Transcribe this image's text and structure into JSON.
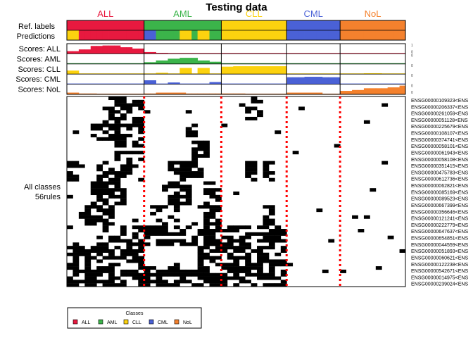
{
  "colors": {
    "ALL": "#E8193F",
    "AML": "#3BB44A",
    "CLL": "#FCD20F",
    "CML": "#4A61D6",
    "NoL": "#F4812D",
    "divider": "#FF0000"
  },
  "chart_data": {
    "type": "heatmap",
    "title": "Testing data",
    "classes": [
      "ALL",
      "AML",
      "CLL",
      "CML",
      "NoL"
    ],
    "class_sample_counts": [
      13,
      13,
      11,
      9,
      11
    ],
    "ref_labels_row": "Ref. labels",
    "predictions_row": "Predictions",
    "predictions": [
      "CLL",
      "CLL",
      "ALL",
      "ALL",
      "ALL",
      "ALL",
      "ALL",
      "ALL",
      "ALL",
      "ALL",
      "ALL",
      "ALL",
      "ALL",
      "CML",
      "CML",
      "AML",
      "AML",
      "AML",
      "AML",
      "CLL",
      "CLL",
      "AML",
      "CLL",
      "CLL",
      "AML",
      "AML",
      "CLL",
      "CLL",
      "CLL",
      "CLL",
      "CLL",
      "CLL",
      "CLL",
      "CLL",
      "CLL",
      "CLL",
      "CLL",
      "CML",
      "CML",
      "CML",
      "CML",
      "CML",
      "CML",
      "CML",
      "CML",
      "CML",
      "NoL",
      "NoL",
      "NoL",
      "NoL",
      "NoL",
      "NoL",
      "NoL",
      "NoL",
      "NoL",
      "NoL",
      "NoL"
    ],
    "score_rows": [
      {
        "label": "Scores: ALL",
        "class": "ALL",
        "max_label": "1",
        "min_label": "0",
        "values": [
          0.3,
          0.3,
          0.5,
          0.5,
          0.9,
          0.9,
          0.95,
          0.95,
          0.95,
          0.75,
          0.75,
          0.6,
          0.6,
          0.2,
          0.2,
          0.1,
          0.1,
          0,
          0,
          0,
          0,
          0,
          0,
          0,
          0,
          0,
          0.05,
          0.05,
          0,
          0,
          0,
          0,
          0,
          0,
          0,
          0,
          0,
          0,
          0,
          0,
          0,
          0,
          0,
          0,
          0,
          0,
          0,
          0,
          0,
          0,
          0,
          0,
          0,
          0,
          0,
          0,
          0
        ]
      },
      {
        "label": "Scores: AML",
        "class": "AML",
        "max_label": "0",
        "min_label": "",
        "values": [
          0,
          0,
          0,
          0,
          0,
          0,
          0,
          0,
          0,
          0,
          0,
          0,
          0,
          0.2,
          0.2,
          0.4,
          0.4,
          0.6,
          0.6,
          0.7,
          0.7,
          0.7,
          0.4,
          0.4,
          0.25,
          0.25,
          0,
          0,
          0,
          0,
          0,
          0,
          0,
          0,
          0,
          0,
          0,
          0,
          0,
          0,
          0,
          0,
          0,
          0,
          0,
          0,
          0,
          0,
          0,
          0,
          0,
          0,
          0,
          0,
          0,
          0,
          0
        ]
      },
      {
        "label": "Scores: CLL",
        "class": "CLL",
        "max_label": "0",
        "min_label": "",
        "values": [
          0.4,
          0.4,
          0,
          0,
          0,
          0,
          0,
          0,
          0,
          0,
          0,
          0,
          0,
          0,
          0,
          0.15,
          0.15,
          0,
          0,
          0.7,
          0.7,
          0,
          0.7,
          0.7,
          0,
          0,
          0.85,
          0.85,
          0.9,
          0.9,
          0.9,
          0.9,
          0.9,
          0.9,
          0.9,
          0.9,
          0.9,
          0,
          0,
          0,
          0,
          0,
          0,
          0,
          0,
          0,
          0,
          0,
          0,
          0,
          0.1,
          0.1,
          0.1,
          0,
          0,
          0,
          0
        ]
      },
      {
        "label": "Scores: CML",
        "class": "CML",
        "max_label": "0",
        "min_label": "",
        "values": [
          0,
          0,
          0,
          0,
          0,
          0,
          0,
          0,
          0,
          0,
          0,
          0,
          0,
          0.45,
          0.45,
          0,
          0,
          0.2,
          0.2,
          0,
          0,
          0,
          0,
          0,
          0.25,
          0.25,
          0,
          0,
          0,
          0,
          0,
          0,
          0,
          0,
          0,
          0,
          0,
          0.8,
          0.8,
          0.8,
          0.85,
          0.85,
          0.85,
          0.8,
          0.8,
          0.8,
          0,
          0,
          0,
          0,
          0,
          0,
          0,
          0,
          0,
          0,
          0
        ]
      },
      {
        "label": "Scores: NoL",
        "class": "NoL",
        "max_label": "0",
        "min_label": "0",
        "values": [
          0.2,
          0.2,
          0.1,
          0.1,
          0.1,
          0,
          0,
          0,
          0,
          0,
          0,
          0,
          0,
          0.1,
          0.1,
          0.2,
          0.2,
          0.2,
          0.2,
          0.2,
          0.1,
          0.1,
          0.1,
          0.1,
          0.1,
          0.1,
          0.1,
          0.1,
          0.1,
          0.1,
          0,
          0,
          0,
          0,
          0,
          0,
          0,
          0.2,
          0.2,
          0.2,
          0.2,
          0.2,
          0.2,
          0,
          0,
          0,
          0.4,
          0.4,
          0.5,
          0.5,
          0.7,
          0.7,
          0.7,
          0.7,
          0.8,
          0.8,
          1.0
        ]
      }
    ],
    "rules_label_line1": "All classes",
    "rules_label_line2": "56rules",
    "gene_labels": [
      "ENSG00000109323<ENS",
      "ENSG00000206337<ENS",
      "ENSG00000261059<ENS",
      "ENSG00000051128<ENS",
      "ENSG00000225679<ENS",
      "ENSG00000108107<ENS",
      "ENSG00000374741<ENS",
      "ENSG00000058101<ENS",
      "ENSG00000061943<ENS",
      "ENSG00000058108<ENS",
      "ENSG00000351415<ENS",
      "ENSG00000475783<ENS",
      "ENSG00000612736<ENS",
      "ENSG00000062821<ENS",
      "ENSG00000085169<ENS",
      "ENSG00000089523<ENS",
      "ENSG00000667399<ENS",
      "ENSG00000356646<ENS",
      "ENSG00000121241<ENS",
      "ENSG00000222779<ENS",
      "ENSG00000647637<ENS",
      "ENSG00000654851<ENS",
      "ENSG00000044559<ENS",
      "ENSG00000051893<ENS",
      "ENSG00000060621<ENS",
      "ENSG00000122238<ENS",
      "ENSG00000542671<ENS",
      "ENSG00000014975<ENS",
      "ENSG00000239024<ENS"
    ],
    "rule_cells": [
      [
        0,
        7,
        0
      ],
      [
        0,
        8,
        0
      ],
      [
        0,
        9,
        0
      ],
      [
        0,
        10,
        0
      ],
      [
        0,
        11,
        0
      ],
      [
        0,
        12,
        0
      ],
      [
        0,
        30,
        0
      ],
      [
        0,
        31,
        0
      ],
      [
        0,
        32,
        0
      ],
      [
        1,
        4,
        0
      ],
      [
        1,
        5,
        0
      ],
      [
        1,
        6,
        0
      ],
      [
        1,
        7,
        0
      ],
      [
        1,
        8,
        0
      ],
      [
        1,
        9,
        0
      ],
      [
        1,
        10,
        0
      ],
      [
        1,
        11,
        0
      ],
      [
        1,
        12,
        0
      ],
      [
        1,
        20,
        0
      ],
      [
        1,
        21,
        0
      ],
      [
        2,
        8,
        0
      ],
      [
        2,
        9,
        0
      ],
      [
        2,
        10,
        0
      ],
      [
        2,
        11,
        0
      ],
      [
        2,
        12,
        0
      ],
      [
        2,
        21,
        0
      ],
      [
        2,
        22,
        0
      ],
      [
        2,
        23,
        0
      ],
      [
        3,
        0,
        0
      ],
      [
        3,
        1,
        0
      ],
      [
        3,
        5,
        0
      ],
      [
        3,
        6,
        0
      ],
      [
        3,
        7,
        0
      ],
      [
        3,
        8,
        0
      ],
      [
        3,
        9,
        0
      ],
      [
        3,
        10,
        0
      ],
      [
        3,
        17,
        0
      ],
      [
        3,
        18,
        0
      ],
      [
        3,
        19,
        0
      ],
      [
        3,
        20,
        0
      ],
      [
        3,
        21,
        0
      ],
      [
        3,
        22,
        0
      ],
      [
        3,
        30,
        0
      ],
      [
        3,
        31,
        0
      ],
      [
        3,
        33,
        0
      ],
      [
        3,
        34,
        0
      ],
      [
        4,
        4,
        0
      ],
      [
        4,
        5,
        0
      ],
      [
        4,
        6,
        0
      ],
      [
        4,
        7,
        0
      ],
      [
        4,
        8,
        0
      ],
      [
        4,
        9,
        0
      ],
      [
        4,
        16,
        0
      ],
      [
        4,
        17,
        0
      ],
      [
        4,
        18,
        0
      ],
      [
        4,
        19,
        0
      ],
      [
        4,
        20,
        0
      ],
      [
        4,
        23,
        0
      ],
      [
        4,
        24,
        0
      ],
      [
        4,
        25,
        0
      ],
      [
        5,
        2,
        0
      ],
      [
        5,
        3,
        0
      ],
      [
        5,
        4,
        0
      ],
      [
        5,
        5,
        0
      ],
      [
        5,
        6,
        0
      ],
      [
        5,
        7,
        0
      ],
      [
        5,
        14,
        0
      ],
      [
        5,
        15,
        0
      ],
      [
        5,
        16,
        0
      ],
      [
        5,
        17,
        0
      ],
      [
        5,
        18,
        0
      ],
      [
        5,
        23,
        0
      ],
      [
        5,
        24,
        0
      ],
      [
        5,
        25,
        0
      ],
      [
        5,
        33,
        0
      ],
      [
        5,
        34,
        0
      ],
      [
        6,
        5,
        0
      ],
      [
        6,
        6,
        0
      ],
      [
        6,
        7,
        0
      ],
      [
        6,
        8,
        0
      ],
      [
        6,
        9,
        0
      ],
      [
        6,
        10,
        0
      ],
      [
        6,
        11,
        0
      ],
      [
        6,
        12,
        0
      ],
      [
        6,
        13,
        0
      ],
      [
        6,
        14,
        0
      ],
      [
        6,
        15,
        0
      ],
      [
        6,
        16,
        0
      ],
      [
        6,
        17,
        0
      ],
      [
        6,
        18,
        0
      ],
      [
        6,
        19,
        0
      ],
      [
        6,
        20,
        0
      ],
      [
        6,
        21,
        0
      ],
      [
        6,
        22,
        0
      ],
      [
        6,
        23,
        0
      ],
      [
        6,
        24,
        0
      ],
      [
        6,
        25,
        0
      ],
      [
        6,
        26,
        0
      ],
      [
        6,
        27,
        0
      ],
      [
        6,
        28,
        0
      ],
      [
        6,
        29,
        0
      ],
      [
        6,
        30,
        0
      ],
      [
        6,
        31,
        0
      ],
      [
        6,
        32,
        0
      ],
      [
        6,
        33,
        0
      ],
      [
        6,
        34,
        0
      ],
      [
        6,
        35,
        0
      ],
      [
        6,
        36,
        0
      ],
      [
        7,
        0,
        0
      ],
      [
        7,
        1,
        0
      ],
      [
        7,
        2,
        0
      ],
      [
        7,
        3,
        0
      ],
      [
        7,
        4,
        0
      ],
      [
        7,
        5,
        0
      ],
      [
        7,
        6,
        0
      ],
      [
        7,
        7,
        0
      ],
      [
        7,
        8,
        0
      ],
      [
        7,
        9,
        0
      ],
      [
        7,
        10,
        0
      ],
      [
        7,
        11,
        0
      ],
      [
        7,
        12,
        0
      ],
      [
        7,
        22,
        0
      ],
      [
        7,
        23,
        0
      ],
      [
        7,
        24,
        0
      ],
      [
        7,
        25,
        0
      ],
      [
        7,
        26,
        0
      ],
      [
        7,
        27,
        0
      ],
      [
        7,
        28,
        0
      ],
      [
        7,
        29,
        0
      ],
      [
        7,
        30,
        0
      ],
      [
        7,
        31,
        0
      ],
      [
        7,
        32,
        0
      ],
      [
        7,
        33,
        0
      ],
      [
        7,
        34,
        0
      ],
      [
        7,
        35,
        0
      ],
      [
        7,
        36,
        0
      ],
      [
        8,
        0,
        0
      ],
      [
        8,
        1,
        0
      ],
      [
        8,
        2,
        0
      ],
      [
        8,
        3,
        0
      ],
      [
        8,
        4,
        0
      ],
      [
        8,
        5,
        0
      ],
      [
        8,
        6,
        0
      ],
      [
        8,
        7,
        0
      ],
      [
        8,
        8,
        0
      ],
      [
        8,
        9,
        0
      ],
      [
        8,
        10,
        0
      ],
      [
        8,
        11,
        0
      ],
      [
        8,
        12,
        0
      ],
      [
        8,
        13,
        0
      ],
      [
        8,
        14,
        0
      ],
      [
        8,
        15,
        0
      ],
      [
        8,
        16,
        0
      ],
      [
        8,
        17,
        0
      ],
      [
        8,
        18,
        0
      ],
      [
        8,
        19,
        0
      ],
      [
        8,
        20,
        0
      ],
      [
        8,
        21,
        0
      ],
      [
        8,
        22,
        0
      ],
      [
        8,
        23,
        0
      ],
      [
        8,
        24,
        0
      ],
      [
        8,
        25,
        0
      ],
      [
        8,
        26,
        0
      ],
      [
        8,
        27,
        0
      ],
      [
        8,
        28,
        0
      ],
      [
        8,
        29,
        0
      ],
      [
        8,
        30,
        0
      ],
      [
        8,
        31,
        0
      ],
      [
        8,
        32,
        0
      ],
      [
        8,
        33,
        0
      ],
      [
        8,
        34,
        0
      ],
      [
        8,
        35,
        0
      ],
      [
        8,
        36,
        0
      ]
    ],
    "legend_title": "Classes",
    "legend": [
      "ALL",
      "AML",
      "CLL",
      "CML",
      "NoL"
    ]
  }
}
